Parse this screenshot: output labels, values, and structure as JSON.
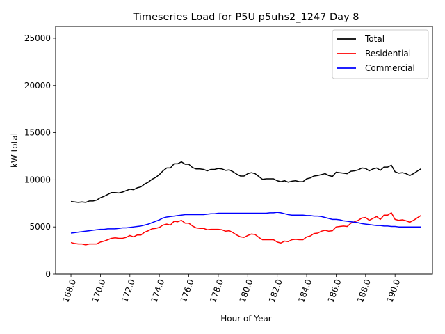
{
  "chart_data": {
    "type": "line",
    "title": "Timeseries Load for P5U p5uhs2_1247  Day 8",
    "xlabel": "Hour of Year",
    "ylabel": "kW total",
    "xlim": [
      166.96,
      192.54
    ],
    "ylim": [
      0,
      26250
    ],
    "xticks": [
      168,
      170,
      172,
      174,
      176,
      178,
      180,
      182,
      184,
      186,
      188,
      190
    ],
    "xtick_labels": [
      "168.0",
      "170.0",
      "172.0",
      "174.0",
      "176.0",
      "178.0",
      "180.0",
      "182.0",
      "184.0",
      "186.0",
      "188.0",
      "190.0"
    ],
    "yticks": [
      0,
      5000,
      10000,
      15000,
      20000,
      25000
    ],
    "ytick_labels": [
      "0",
      "5000",
      "10000",
      "15000",
      "20000",
      "25000"
    ],
    "grid": false,
    "legend_position": "top-right",
    "series": [
      {
        "name": "Total",
        "color": "#000000",
        "x": [
          168.0,
          168.25,
          168.5,
          168.75,
          169.0,
          169.25,
          169.5,
          169.75,
          170.0,
          170.25,
          170.5,
          170.75,
          171.0,
          171.25,
          171.5,
          171.75,
          172.0,
          172.25,
          172.5,
          172.75,
          173.0,
          173.25,
          173.5,
          173.75,
          174.0,
          174.25,
          174.5,
          174.75,
          175.0,
          175.25,
          175.5,
          175.75,
          176.0,
          176.25,
          176.5,
          176.75,
          177.0,
          177.25,
          177.5,
          177.75,
          178.0,
          178.25,
          178.5,
          178.75,
          179.0,
          179.25,
          179.5,
          179.75,
          180.0,
          180.25,
          180.5,
          180.75,
          181.0,
          181.25,
          181.5,
          181.75,
          182.0,
          182.25,
          182.5,
          182.75,
          183.0,
          183.25,
          183.5,
          183.75,
          184.0,
          184.25,
          184.5,
          184.75,
          185.0,
          185.25,
          185.5,
          185.75,
          186.0,
          186.25,
          186.5,
          186.75,
          187.0,
          187.25,
          187.5,
          187.75,
          188.0,
          188.25,
          188.5,
          188.75,
          189.0,
          189.25,
          189.5,
          189.75,
          190.0,
          190.25,
          190.5,
          190.75,
          191.0,
          191.25,
          191.5,
          191.75
        ],
        "y": [
          7700,
          7650,
          7600,
          7650,
          7600,
          7750,
          7750,
          7850,
          8100,
          8250,
          8450,
          8650,
          8650,
          8600,
          8700,
          8850,
          9000,
          8950,
          9150,
          9250,
          9550,
          9750,
          10050,
          10250,
          10550,
          10950,
          11250,
          11250,
          11700,
          11700,
          11900,
          11650,
          11650,
          11300,
          11150,
          11150,
          11100,
          10950,
          11100,
          11100,
          11200,
          11150,
          11000,
          11050,
          10850,
          10600,
          10400,
          10400,
          10650,
          10750,
          10650,
          10350,
          10050,
          10100,
          10100,
          10100,
          9900,
          9800,
          9900,
          9750,
          9850,
          9900,
          9800,
          9800,
          10100,
          10200,
          10400,
          10450,
          10550,
          10650,
          10450,
          10350,
          10800,
          10750,
          10700,
          10650,
          10900,
          10950,
          11050,
          11250,
          11200,
          10950,
          11150,
          11250,
          11000,
          11350,
          11350,
          11550,
          10850,
          10700,
          10750,
          10650,
          10450,
          10650,
          10900,
          11150
        ]
      },
      {
        "name": "Residential",
        "color": "#ff0000",
        "x": [
          168.0,
          168.25,
          168.5,
          168.75,
          169.0,
          169.25,
          169.5,
          169.75,
          170.0,
          170.25,
          170.5,
          170.75,
          171.0,
          171.25,
          171.5,
          171.75,
          172.0,
          172.25,
          172.5,
          172.75,
          173.0,
          173.25,
          173.5,
          173.75,
          174.0,
          174.25,
          174.5,
          174.75,
          175.0,
          175.25,
          175.5,
          175.75,
          176.0,
          176.25,
          176.5,
          176.75,
          177.0,
          177.25,
          177.5,
          177.75,
          178.0,
          178.25,
          178.5,
          178.75,
          179.0,
          179.25,
          179.5,
          179.75,
          180.0,
          180.25,
          180.5,
          180.75,
          181.0,
          181.25,
          181.5,
          181.75,
          182.0,
          182.25,
          182.5,
          182.75,
          183.0,
          183.25,
          183.5,
          183.75,
          184.0,
          184.25,
          184.5,
          184.75,
          185.0,
          185.25,
          185.5,
          185.75,
          186.0,
          186.25,
          186.5,
          186.75,
          187.0,
          187.25,
          187.5,
          187.75,
          188.0,
          188.25,
          188.5,
          188.75,
          189.0,
          189.25,
          189.5,
          189.75,
          190.0,
          190.25,
          190.5,
          190.75,
          191.0,
          191.25,
          191.5,
          191.75
        ],
        "y": [
          3350,
          3250,
          3200,
          3200,
          3100,
          3200,
          3200,
          3200,
          3400,
          3500,
          3650,
          3800,
          3850,
          3800,
          3800,
          3900,
          4100,
          3950,
          4150,
          4150,
          4450,
          4600,
          4800,
          4850,
          4950,
          5200,
          5300,
          5200,
          5600,
          5550,
          5700,
          5400,
          5400,
          5100,
          4900,
          4850,
          4850,
          4700,
          4750,
          4750,
          4750,
          4700,
          4550,
          4600,
          4400,
          4150,
          3950,
          3900,
          4100,
          4250,
          4200,
          3900,
          3650,
          3650,
          3650,
          3650,
          3400,
          3300,
          3500,
          3450,
          3650,
          3700,
          3650,
          3650,
          3950,
          4050,
          4300,
          4350,
          4550,
          4650,
          4550,
          4600,
          5000,
          5050,
          5100,
          5050,
          5400,
          5550,
          5700,
          5950,
          6000,
          5700,
          5900,
          6100,
          5800,
          6250,
          6250,
          6500,
          5800,
          5700,
          5750,
          5650,
          5500,
          5700,
          5950,
          6200
        ]
      },
      {
        "name": "Commercial",
        "color": "#0000ff",
        "x": [
          168.0,
          168.25,
          168.5,
          168.75,
          169.0,
          169.25,
          169.5,
          169.75,
          170.0,
          170.25,
          170.5,
          170.75,
          171.0,
          171.25,
          171.5,
          171.75,
          172.0,
          172.25,
          172.5,
          172.75,
          173.0,
          173.25,
          173.5,
          173.75,
          174.0,
          174.25,
          174.5,
          174.75,
          175.0,
          175.25,
          175.5,
          175.75,
          176.0,
          176.25,
          176.5,
          176.75,
          177.0,
          177.25,
          177.5,
          177.75,
          178.0,
          178.25,
          178.5,
          178.75,
          179.0,
          179.25,
          179.5,
          179.75,
          180.0,
          180.25,
          180.5,
          180.75,
          181.0,
          181.25,
          181.5,
          181.75,
          182.0,
          182.25,
          182.5,
          182.75,
          183.0,
          183.25,
          183.5,
          183.75,
          184.0,
          184.25,
          184.5,
          184.75,
          185.0,
          185.25,
          185.5,
          185.75,
          186.0,
          186.25,
          186.5,
          186.75,
          187.0,
          187.25,
          187.5,
          187.75,
          188.0,
          188.25,
          188.5,
          188.75,
          189.0,
          189.25,
          189.5,
          189.75,
          190.0,
          190.25,
          190.5,
          190.75,
          191.0,
          191.25,
          191.5,
          191.75
        ],
        "y": [
          4350,
          4400,
          4450,
          4500,
          4550,
          4600,
          4650,
          4700,
          4750,
          4750,
          4800,
          4800,
          4800,
          4850,
          4900,
          4900,
          4950,
          5000,
          5050,
          5100,
          5200,
          5300,
          5450,
          5600,
          5750,
          5950,
          6050,
          6100,
          6150,
          6200,
          6250,
          6300,
          6300,
          6300,
          6300,
          6300,
          6300,
          6350,
          6400,
          6400,
          6450,
          6450,
          6450,
          6450,
          6450,
          6450,
          6450,
          6450,
          6450,
          6450,
          6450,
          6450,
          6450,
          6450,
          6500,
          6500,
          6550,
          6500,
          6400,
          6300,
          6250,
          6250,
          6250,
          6250,
          6200,
          6200,
          6150,
          6150,
          6100,
          6000,
          5900,
          5800,
          5800,
          5750,
          5650,
          5600,
          5550,
          5500,
          5450,
          5350,
          5300,
          5250,
          5200,
          5150,
          5150,
          5100,
          5100,
          5050,
          5050,
          5000,
          5000,
          5000,
          5000,
          5000,
          5000,
          5000
        ]
      }
    ]
  }
}
